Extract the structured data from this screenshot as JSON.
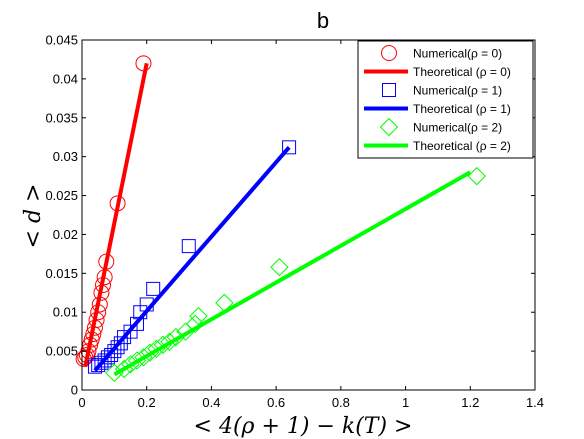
{
  "chart_data": {
    "type": "scatter",
    "title": "b",
    "xlabel": "< 4(ρ + 1) − k(T) >",
    "ylabel": "< d >",
    "xlim": [
      0,
      1.4
    ],
    "ylim": [
      0,
      0.045
    ],
    "x_ticks": [
      "0",
      "0.2",
      "0.4",
      "0.6",
      "0.8",
      "1",
      "1.2",
      "1.4"
    ],
    "y_ticks": [
      "0",
      "0.005",
      "0.01",
      "0.015",
      "0.02",
      "0.025",
      "0.03",
      "0.035",
      "0.04",
      "0.045"
    ],
    "grid": false,
    "legend_position": "top-right",
    "series": [
      {
        "name": "Numerical(ρ = 0)",
        "kind": "marker",
        "marker": "circle",
        "color": "#ff0000",
        "x": [
          0.005,
          0.01,
          0.015,
          0.02,
          0.025,
          0.03,
          0.035,
          0.04,
          0.045,
          0.05,
          0.055,
          0.06,
          0.065,
          0.07,
          0.075,
          0.11,
          0.19
        ],
        "y": [
          0.004,
          0.0042,
          0.0045,
          0.005,
          0.0058,
          0.0065,
          0.0072,
          0.008,
          0.009,
          0.01,
          0.011,
          0.0125,
          0.0135,
          0.0145,
          0.0165,
          0.024,
          0.042
        ]
      },
      {
        "name": "Theoretical (ρ = 0)",
        "kind": "line",
        "color": "#ff0000",
        "x": [
          0.01,
          0.2
        ],
        "y": [
          0.003,
          0.042
        ]
      },
      {
        "name": "Numerical(ρ = 1)",
        "kind": "marker",
        "marker": "square",
        "color": "#0000ff",
        "x": [
          0.04,
          0.05,
          0.06,
          0.07,
          0.08,
          0.09,
          0.1,
          0.11,
          0.12,
          0.13,
          0.15,
          0.17,
          0.18,
          0.2,
          0.22,
          0.33,
          0.64
        ],
        "y": [
          0.003,
          0.0032,
          0.0035,
          0.0038,
          0.0042,
          0.0045,
          0.005,
          0.0055,
          0.006,
          0.0068,
          0.0075,
          0.0085,
          0.01,
          0.011,
          0.013,
          0.0185,
          0.0312
        ]
      },
      {
        "name": "Theoretical (ρ = 1)",
        "kind": "line",
        "color": "#0000ff",
        "x": [
          0.04,
          0.64
        ],
        "y": [
          0.0025,
          0.0312
        ]
      },
      {
        "name": "Numerical(ρ = 2)",
        "kind": "marker",
        "marker": "diamond",
        "color": "#00ff00",
        "x": [
          0.1,
          0.13,
          0.15,
          0.17,
          0.19,
          0.21,
          0.23,
          0.25,
          0.27,
          0.29,
          0.32,
          0.35,
          0.36,
          0.44,
          0.61,
          1.22
        ],
        "y": [
          0.0022,
          0.0027,
          0.0033,
          0.0038,
          0.0042,
          0.0048,
          0.0053,
          0.0058,
          0.0062,
          0.0068,
          0.0075,
          0.0085,
          0.0095,
          0.0112,
          0.0158,
          0.0275
        ]
      },
      {
        "name": "Theoretical (ρ = 2)",
        "kind": "line",
        "color": "#00ff00",
        "x": [
          0.1,
          1.2
        ],
        "y": [
          0.002,
          0.028
        ]
      }
    ]
  }
}
